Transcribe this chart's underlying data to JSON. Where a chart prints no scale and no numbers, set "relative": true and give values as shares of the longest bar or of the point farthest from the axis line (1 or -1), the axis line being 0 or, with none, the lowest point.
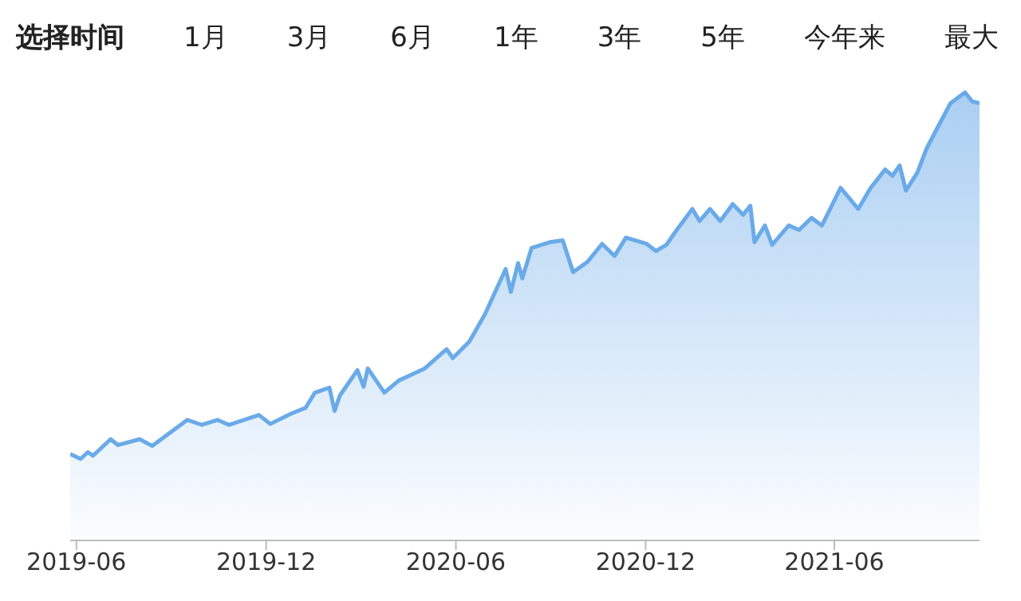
{
  "chart_data": {
    "type": "area",
    "relative": true,
    "annotations": [
      "选择时间",
      "1月",
      "3月",
      "6月",
      "1年",
      "3年",
      "5年",
      "今年来",
      "最大"
    ],
    "x": [
      "2019-05-26",
      "2019-06-05",
      "2019-06-12",
      "2019-06-17",
      "2019-07-04",
      "2019-07-11",
      "2019-08-01",
      "2019-08-13",
      "2019-09-16",
      "2019-09-30",
      "2019-10-15",
      "2019-10-26",
      "2019-11-24",
      "2019-12-05",
      "2019-12-25",
      "2020-01-08",
      "2020-01-17",
      "2020-01-31",
      "2020-02-05",
      "2020-02-10",
      "2020-02-27",
      "2020-03-04",
      "2020-03-08",
      "2020-03-24",
      "2020-04-07",
      "2020-05-02",
      "2020-05-23",
      "2020-05-29",
      "2020-06-14",
      "2020-06-29",
      "2020-07-19",
      "2020-07-24",
      "2020-07-31",
      "2020-08-04",
      "2020-08-13",
      "2020-08-31",
      "2020-09-12",
      "2020-09-22",
      "2020-10-06",
      "2020-10-20",
      "2020-11-01",
      "2020-11-12",
      "2020-12-02",
      "2020-12-11",
      "2020-12-21",
      "2020-12-31",
      "2021-01-15",
      "2021-01-22",
      "2021-02-01",
      "2021-02-11",
      "2021-02-23",
      "2021-03-05",
      "2021-03-12",
      "2021-03-16",
      "2021-03-26",
      "2021-04-02",
      "2021-04-18",
      "2021-04-28",
      "2021-05-10",
      "2021-05-20",
      "2021-06-07",
      "2021-06-24",
      "2021-07-06",
      "2021-07-20",
      "2021-07-27",
      "2021-08-03",
      "2021-08-09",
      "2021-08-20",
      "2021-08-29",
      "2021-09-07",
      "2021-09-21",
      "2021-10-05",
      "2021-10-12",
      "2021-10-19"
    ],
    "series": [
      {
        "color": "#6aaae8",
        "values": [
          0.193,
          0.182,
          0.197,
          0.189,
          0.226,
          0.213,
          0.226,
          0.211,
          0.269,
          0.258,
          0.269,
          0.258,
          0.28,
          0.26,
          0.283,
          0.296,
          0.33,
          0.341,
          0.289,
          0.323,
          0.38,
          0.343,
          0.384,
          0.33,
          0.357,
          0.384,
          0.427,
          0.407,
          0.444,
          0.505,
          0.606,
          0.555,
          0.619,
          0.585,
          0.653,
          0.666,
          0.67,
          0.599,
          0.622,
          0.662,
          0.635,
          0.676,
          0.662,
          0.646,
          0.66,
          0.693,
          0.74,
          0.713,
          0.74,
          0.713,
          0.751,
          0.727,
          0.747,
          0.666,
          0.703,
          0.66,
          0.703,
          0.693,
          0.72,
          0.703,
          0.787,
          0.74,
          0.787,
          0.828,
          0.814,
          0.837,
          0.781,
          0.821,
          0.875,
          0.915,
          0.976,
          1.0,
          0.98,
          0.976
        ]
      }
    ],
    "xlim": [
      "2019-05-26",
      "2021-10-19"
    ],
    "xticks": [
      "2019-06",
      "2019-12",
      "2020-06",
      "2020-12",
      "2021-06"
    ]
  }
}
